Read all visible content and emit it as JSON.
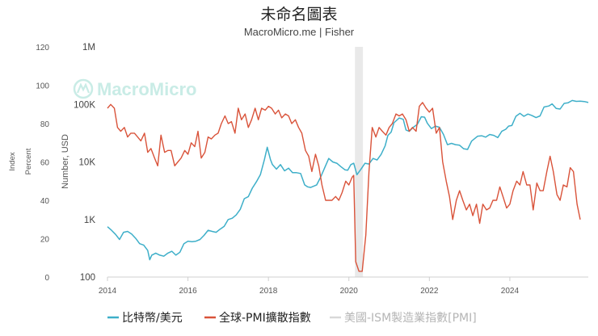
{
  "chart_data": {
    "type": "line",
    "title": "未命名圖表",
    "subtitle": "MacroMicro.me | Fisher",
    "watermark": "MacroMicro",
    "x_ticks": [
      "2014",
      "2016",
      "2018",
      "2020",
      "2022",
      "2024"
    ],
    "x_range": [
      2014.0,
      2025.95
    ],
    "recession_band": [
      2020.15,
      2020.35
    ],
    "axes": {
      "index": {
        "label": "Index",
        "range": [
          0,
          120
        ],
        "ticks": [
          "0",
          "20",
          "40",
          "60",
          "80",
          "100",
          "120"
        ]
      },
      "percent": {
        "label": "Percent",
        "range": [
          0,
          120
        ]
      },
      "usd": {
        "label": "Number, USD",
        "scale": "log",
        "range": [
          100,
          1000000
        ],
        "ticks": [
          "100",
          "1K",
          "10K",
          "100K",
          "1M"
        ]
      }
    },
    "colors": {
      "bitcoin": "#3eafc9",
      "pmi": "#d9533a",
      "ism": "#d8d8d8",
      "band": "#e9e9e9"
    },
    "legend": [
      "比特幣/美元",
      "全球-PMI擴散指數",
      "美國-ISM製造業指數[PMI]"
    ],
    "series": [
      {
        "name": "比特幣/美元",
        "axis": "usd",
        "color": "#3eafc9",
        "points": [
          [
            2014.0,
            750
          ],
          [
            2014.1,
            650
          ],
          [
            2014.2,
            550
          ],
          [
            2014.3,
            450
          ],
          [
            2014.4,
            600
          ],
          [
            2014.5,
            620
          ],
          [
            2014.6,
            560
          ],
          [
            2014.7,
            470
          ],
          [
            2014.8,
            380
          ],
          [
            2014.9,
            360
          ],
          [
            2015.0,
            290
          ],
          [
            2015.05,
            200
          ],
          [
            2015.1,
            240
          ],
          [
            2015.2,
            260
          ],
          [
            2015.3,
            240
          ],
          [
            2015.4,
            230
          ],
          [
            2015.5,
            260
          ],
          [
            2015.6,
            280
          ],
          [
            2015.7,
            240
          ],
          [
            2015.8,
            270
          ],
          [
            2015.9,
            380
          ],
          [
            2016.0,
            420
          ],
          [
            2016.1,
            410
          ],
          [
            2016.2,
            420
          ],
          [
            2016.3,
            450
          ],
          [
            2016.4,
            530
          ],
          [
            2016.5,
            650
          ],
          [
            2016.6,
            620
          ],
          [
            2016.7,
            600
          ],
          [
            2016.8,
            680
          ],
          [
            2016.9,
            760
          ],
          [
            2017.0,
            1000
          ],
          [
            2017.1,
            1050
          ],
          [
            2017.2,
            1200
          ],
          [
            2017.3,
            1500
          ],
          [
            2017.4,
            2300
          ],
          [
            2017.5,
            2500
          ],
          [
            2017.6,
            3500
          ],
          [
            2017.7,
            4500
          ],
          [
            2017.8,
            6000
          ],
          [
            2017.9,
            11000
          ],
          [
            2017.97,
            18000
          ],
          [
            2018.05,
            11000
          ],
          [
            2018.1,
            9000
          ],
          [
            2018.2,
            7500
          ],
          [
            2018.3,
            9000
          ],
          [
            2018.4,
            7000
          ],
          [
            2018.5,
            7800
          ],
          [
            2018.6,
            6500
          ],
          [
            2018.7,
            6500
          ],
          [
            2018.8,
            6300
          ],
          [
            2018.9,
            4000
          ],
          [
            2018.97,
            3700
          ],
          [
            2019.05,
            3600
          ],
          [
            2019.2,
            4000
          ],
          [
            2019.3,
            5500
          ],
          [
            2019.4,
            8000
          ],
          [
            2019.5,
            11500
          ],
          [
            2019.6,
            10000
          ],
          [
            2019.7,
            9500
          ],
          [
            2019.8,
            8300
          ],
          [
            2019.9,
            7300
          ],
          [
            2019.97,
            7200
          ],
          [
            2020.05,
            9000
          ],
          [
            2020.12,
            9500
          ],
          [
            2020.2,
            6000
          ],
          [
            2020.3,
            7500
          ],
          [
            2020.4,
            9500
          ],
          [
            2020.5,
            9200
          ],
          [
            2020.6,
            11500
          ],
          [
            2020.7,
            10800
          ],
          [
            2020.8,
            13500
          ],
          [
            2020.9,
            19000
          ],
          [
            2020.97,
            29000
          ],
          [
            2021.05,
            33000
          ],
          [
            2021.12,
            48000
          ],
          [
            2021.25,
            58000
          ],
          [
            2021.35,
            55000
          ],
          [
            2021.42,
            36000
          ],
          [
            2021.5,
            34000
          ],
          [
            2021.6,
            40000
          ],
          [
            2021.7,
            45000
          ],
          [
            2021.8,
            61000
          ],
          [
            2021.88,
            60000
          ],
          [
            2021.95,
            47000
          ],
          [
            2022.05,
            38000
          ],
          [
            2022.15,
            42000
          ],
          [
            2022.25,
            40000
          ],
          [
            2022.35,
            30000
          ],
          [
            2022.45,
            20000
          ],
          [
            2022.55,
            21000
          ],
          [
            2022.65,
            20000
          ],
          [
            2022.75,
            19500
          ],
          [
            2022.85,
            17000
          ],
          [
            2022.95,
            16500
          ],
          [
            2023.05,
            23000
          ],
          [
            2023.2,
            28000
          ],
          [
            2023.3,
            28500
          ],
          [
            2023.4,
            27000
          ],
          [
            2023.5,
            30000
          ],
          [
            2023.6,
            29000
          ],
          [
            2023.7,
            26500
          ],
          [
            2023.8,
            34000
          ],
          [
            2023.9,
            37000
          ],
          [
            2023.97,
            42000
          ],
          [
            2024.05,
            43000
          ],
          [
            2024.15,
            62000
          ],
          [
            2024.25,
            70000
          ],
          [
            2024.35,
            62000
          ],
          [
            2024.45,
            68000
          ],
          [
            2024.55,
            64000
          ],
          [
            2024.65,
            59000
          ],
          [
            2024.75,
            63000
          ],
          [
            2024.85,
            90000
          ],
          [
            2024.97,
            94000
          ],
          [
            2025.05,
            102000
          ],
          [
            2025.15,
            85000
          ],
          [
            2025.25,
            83000
          ],
          [
            2025.35,
            104000
          ],
          [
            2025.45,
            107000
          ],
          [
            2025.55,
            117000
          ],
          [
            2025.65,
            113000
          ],
          [
            2025.75,
            114000
          ],
          [
            2025.85,
            112000
          ],
          [
            2025.95,
            108000
          ]
        ]
      },
      {
        "name": "全球-PMI擴散指數",
        "axis": "percent",
        "color": "#d9533a",
        "points": [
          [
            2014.0,
            88
          ],
          [
            2014.08,
            90
          ],
          [
            2014.17,
            88
          ],
          [
            2014.25,
            78
          ],
          [
            2014.33,
            76
          ],
          [
            2014.42,
            78
          ],
          [
            2014.5,
            73
          ],
          [
            2014.58,
            75
          ],
          [
            2014.67,
            75
          ],
          [
            2014.75,
            73
          ],
          [
            2014.83,
            71
          ],
          [
            2014.92,
            75
          ],
          [
            2015.0,
            65
          ],
          [
            2015.08,
            67
          ],
          [
            2015.17,
            62
          ],
          [
            2015.25,
            58
          ],
          [
            2015.33,
            74
          ],
          [
            2015.42,
            65
          ],
          [
            2015.5,
            66
          ],
          [
            2015.58,
            66
          ],
          [
            2015.67,
            58
          ],
          [
            2015.75,
            60
          ],
          [
            2015.83,
            62
          ],
          [
            2015.92,
            66
          ],
          [
            2016.0,
            64
          ],
          [
            2016.08,
            70
          ],
          [
            2016.17,
            68
          ],
          [
            2016.25,
            76
          ],
          [
            2016.33,
            62
          ],
          [
            2016.42,
            65
          ],
          [
            2016.5,
            73
          ],
          [
            2016.58,
            72
          ],
          [
            2016.67,
            74
          ],
          [
            2016.75,
            75
          ],
          [
            2016.83,
            80
          ],
          [
            2016.92,
            84
          ],
          [
            2017.0,
            80
          ],
          [
            2017.08,
            81
          ],
          [
            2017.17,
            75
          ],
          [
            2017.25,
            88
          ],
          [
            2017.33,
            82
          ],
          [
            2017.42,
            85
          ],
          [
            2017.5,
            78
          ],
          [
            2017.58,
            82
          ],
          [
            2017.67,
            88
          ],
          [
            2017.75,
            82
          ],
          [
            2017.83,
            88
          ],
          [
            2017.92,
            87
          ],
          [
            2018.0,
            89
          ],
          [
            2018.08,
            88
          ],
          [
            2018.17,
            85
          ],
          [
            2018.25,
            87
          ],
          [
            2018.33,
            83
          ],
          [
            2018.42,
            85
          ],
          [
            2018.5,
            84
          ],
          [
            2018.58,
            80
          ],
          [
            2018.67,
            82
          ],
          [
            2018.75,
            78
          ],
          [
            2018.83,
            75
          ],
          [
            2018.92,
            66
          ],
          [
            2019.0,
            63
          ],
          [
            2019.08,
            55
          ],
          [
            2019.17,
            64
          ],
          [
            2019.25,
            58
          ],
          [
            2019.33,
            48
          ],
          [
            2019.42,
            40
          ],
          [
            2019.5,
            40
          ],
          [
            2019.58,
            40
          ],
          [
            2019.67,
            42
          ],
          [
            2019.75,
            40
          ],
          [
            2019.83,
            44
          ],
          [
            2019.92,
            50
          ],
          [
            2020.0,
            48
          ],
          [
            2020.08,
            52
          ],
          [
            2020.12,
            53
          ],
          [
            2020.17,
            8
          ],
          [
            2020.25,
            3
          ],
          [
            2020.33,
            3
          ],
          [
            2020.42,
            22
          ],
          [
            2020.5,
            55
          ],
          [
            2020.58,
            78
          ],
          [
            2020.67,
            73
          ],
          [
            2020.75,
            78
          ],
          [
            2020.83,
            76
          ],
          [
            2020.92,
            74
          ],
          [
            2021.0,
            78
          ],
          [
            2021.08,
            80
          ],
          [
            2021.17,
            85
          ],
          [
            2021.25,
            84
          ],
          [
            2021.33,
            85
          ],
          [
            2021.42,
            82
          ],
          [
            2021.5,
            76
          ],
          [
            2021.58,
            78
          ],
          [
            2021.67,
            76
          ],
          [
            2021.75,
            89
          ],
          [
            2021.83,
            91
          ],
          [
            2021.92,
            88
          ],
          [
            2022.0,
            86
          ],
          [
            2022.08,
            88
          ],
          [
            2022.17,
            75
          ],
          [
            2022.25,
            78
          ],
          [
            2022.33,
            60
          ],
          [
            2022.42,
            50
          ],
          [
            2022.5,
            42
          ],
          [
            2022.58,
            30
          ],
          [
            2022.67,
            40
          ],
          [
            2022.75,
            45
          ],
          [
            2022.83,
            40
          ],
          [
            2022.92,
            35
          ],
          [
            2023.0,
            38
          ],
          [
            2023.08,
            32
          ],
          [
            2023.17,
            38
          ],
          [
            2023.25,
            28
          ],
          [
            2023.33,
            38
          ],
          [
            2023.42,
            35
          ],
          [
            2023.5,
            36
          ],
          [
            2023.58,
            40
          ],
          [
            2023.67,
            40
          ],
          [
            2023.75,
            47
          ],
          [
            2023.83,
            42
          ],
          [
            2023.92,
            36
          ],
          [
            2024.0,
            38
          ],
          [
            2024.08,
            45
          ],
          [
            2024.17,
            50
          ],
          [
            2024.25,
            48
          ],
          [
            2024.33,
            55
          ],
          [
            2024.42,
            48
          ],
          [
            2024.5,
            48
          ],
          [
            2024.58,
            35
          ],
          [
            2024.67,
            49
          ],
          [
            2024.75,
            45
          ],
          [
            2024.83,
            45
          ],
          [
            2024.92,
            55
          ],
          [
            2025.0,
            63
          ],
          [
            2025.08,
            55
          ],
          [
            2025.17,
            43
          ],
          [
            2025.25,
            40
          ],
          [
            2025.33,
            48
          ],
          [
            2025.42,
            47
          ],
          [
            2025.5,
            57
          ],
          [
            2025.58,
            55
          ],
          [
            2025.67,
            38
          ],
          [
            2025.75,
            30
          ]
        ]
      },
      {
        "name": "美國-ISM製造業指數[PMI]",
        "axis": "index",
        "color": "#d8d8d8",
        "points": []
      }
    ]
  }
}
